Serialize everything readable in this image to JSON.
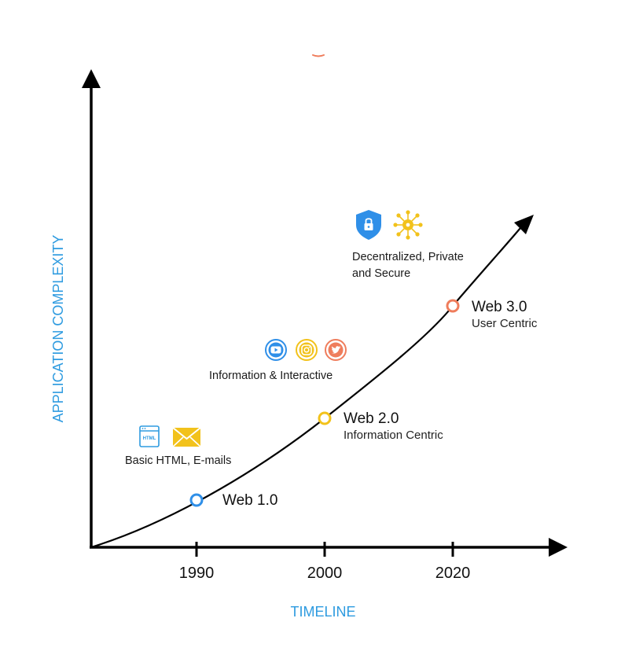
{
  "axes": {
    "x_title": "TIMELINE",
    "y_title": "APPLICATION COMPLEXITY",
    "ticks": [
      "1990",
      "2000",
      "2020"
    ]
  },
  "eras": [
    {
      "title": "Web 1.0",
      "subtitle": "",
      "color": "#2f8fe8"
    },
    {
      "title": "Web 2.0",
      "subtitle": "Information Centric",
      "color": "#f2c21b"
    },
    {
      "title": "Web 3.0",
      "subtitle": "User Centric",
      "color": "#ef7d5c"
    }
  ],
  "features": [
    {
      "caption": "Basic HTML, E-mails",
      "icons": [
        "html-page-icon",
        "envelope-icon"
      ]
    },
    {
      "caption": "Information & Interactive",
      "icons": [
        "youtube-icon",
        "instagram-icon",
        "twitter-icon"
      ]
    },
    {
      "caption_lines": [
        "Decentralized, Private",
        "and Secure"
      ],
      "icons": [
        "shield-lock-icon",
        "network-node-icon"
      ]
    }
  ],
  "html_icon_text": "HTML",
  "colors": {
    "axis": "#000000",
    "accent": "#2e9be0",
    "blue": "#2f8fe8",
    "yellow": "#f2c21b",
    "orange": "#ef7d5c"
  }
}
